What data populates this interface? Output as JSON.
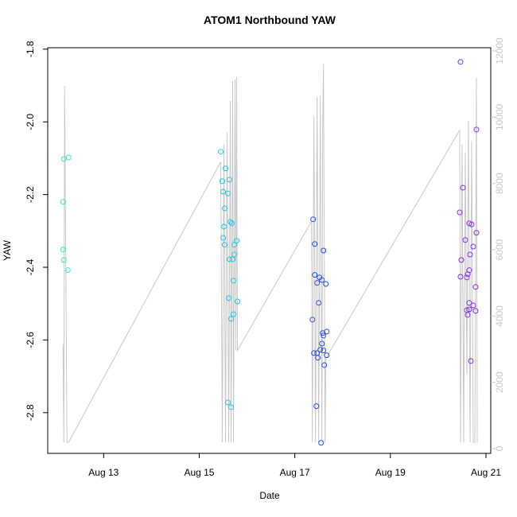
{
  "chart_data": {
    "type": "scatter",
    "title": "ATOM1 Northbound YAW",
    "x_label": "Date",
    "y_label": "YAW",
    "xlim": [
      11.83,
      21.1
    ],
    "xticks": [
      {
        "value": 13,
        "label": "Aug 13"
      },
      {
        "value": 15,
        "label": "Aug 15"
      },
      {
        "value": 17,
        "label": "Aug 17"
      },
      {
        "value": 19,
        "label": "Aug 19"
      },
      {
        "value": 21,
        "label": "Aug 21"
      }
    ],
    "ylim": [
      -2.912,
      -1.796
    ],
    "yticks": [
      -2.8,
      -2.6,
      -2.4,
      -2.2,
      {
        "value": -2,
        "label": "-2.0"
      },
      -1.8
    ],
    "y2lim": [
      -143,
      12096
    ],
    "y2ticks": [
      0,
      2000,
      4000,
      6000,
      8000,
      10000,
      12000
    ],
    "y2_color": "#c8c8c8",
    "series": [
      {
        "type": "line",
        "axis": "y2",
        "color": "#c8c8c8",
        "x": [
          12.15,
          12.167,
          12.183,
          12.233,
          12.267,
          15.45,
          15.483,
          15.517,
          15.55,
          15.583,
          15.617,
          15.65,
          15.667,
          15.7,
          15.717,
          15.75,
          15.767,
          15.783,
          15.8,
          17.35,
          17.367,
          17.4,
          17.433,
          17.467,
          17.5,
          17.533,
          17.567,
          17.583,
          17.6,
          17.633,
          17.65,
          20.45,
          20.467,
          20.5,
          20.533,
          20.567,
          20.6,
          20.633,
          20.667,
          20.7,
          20.733,
          20.767,
          20.8,
          20.817
        ],
        "values": [
          3155,
          191,
          10946,
          191,
          191,
          8652,
          191,
          9178,
          191,
          9536,
          191,
          10492,
          191,
          11090,
          191,
          11137,
          2964,
          11209,
          2964,
          6859,
          191,
          10014,
          191,
          10612,
          191,
          10659,
          191,
          9656,
          11615,
          191,
          2725,
          9608,
          191,
          9178,
          191,
          8939,
          2247,
          9895,
          191,
          9297,
          191,
          191,
          11185,
          191
        ]
      },
      {
        "type": "scatter",
        "color": "#3ee8c0",
        "x": [
          12.167,
          12.267,
          12.15,
          12.15,
          12.167,
          12.25
        ],
        "values": [
          -2.102,
          -2.098,
          -2.22,
          -2.351,
          -2.38,
          -2.408
        ]
      },
      {
        "type": "scatter",
        "color": "#22c8e8",
        "x": [
          15.45,
          15.55,
          15.633,
          15.483,
          15.5,
          15.6,
          15.533,
          15.65,
          15.683,
          15.517,
          15.5,
          15.783,
          15.533,
          15.733,
          15.733,
          15.633,
          15.7,
          15.717,
          15.617,
          15.8,
          15.717,
          15.667,
          15.6,
          15.667
        ],
        "values": [
          -2.082,
          -2.128,
          -2.159,
          -2.163,
          -2.192,
          -2.197,
          -2.238,
          -2.275,
          -2.279,
          -2.288,
          -2.319,
          -2.327,
          -2.338,
          -2.338,
          -2.365,
          -2.378,
          -2.378,
          -2.437,
          -2.485,
          -2.494,
          -2.529,
          -2.542,
          -2.772,
          -2.785
        ]
      },
      {
        "type": "scatter",
        "color": "#2a4ef0",
        "x": [
          17.383,
          17.417,
          17.6,
          17.417,
          17.517,
          17.567,
          17.467,
          17.65,
          17.5,
          17.367,
          17.583,
          17.667,
          17.6,
          17.567,
          17.533,
          17.6,
          17.4,
          17.467,
          17.667,
          17.483,
          17.617,
          17.45,
          17.55
        ],
        "values": [
          -2.268,
          -2.336,
          -2.354,
          -2.421,
          -2.428,
          -2.435,
          -2.443,
          -2.446,
          -2.498,
          -2.544,
          -2.581,
          -2.577,
          -2.588,
          -2.61,
          -2.627,
          -2.629,
          -2.636,
          -2.636,
          -2.642,
          -2.649,
          -2.669,
          -2.782,
          -2.883
        ]
      },
      {
        "type": "scatter",
        "color": "#8a2ef0",
        "x": [
          20.467,
          20.8,
          20.517,
          20.45,
          20.65,
          20.7,
          20.8,
          20.567,
          20.733,
          20.483,
          20.667,
          20.65,
          20.617,
          20.467,
          20.6,
          20.783,
          20.65,
          20.733,
          20.65,
          20.6,
          20.783,
          20.617,
          20.683
        ],
        "values": [
          -1.835,
          -2.021,
          -2.181,
          -2.249,
          -2.279,
          -2.282,
          -2.305,
          -2.325,
          -2.343,
          -2.38,
          -2.365,
          -2.408,
          -2.419,
          -2.426,
          -2.428,
          -2.454,
          -2.498,
          -2.505,
          -2.516,
          -2.518,
          -2.52,
          -2.531,
          -2.658
        ]
      }
    ]
  }
}
